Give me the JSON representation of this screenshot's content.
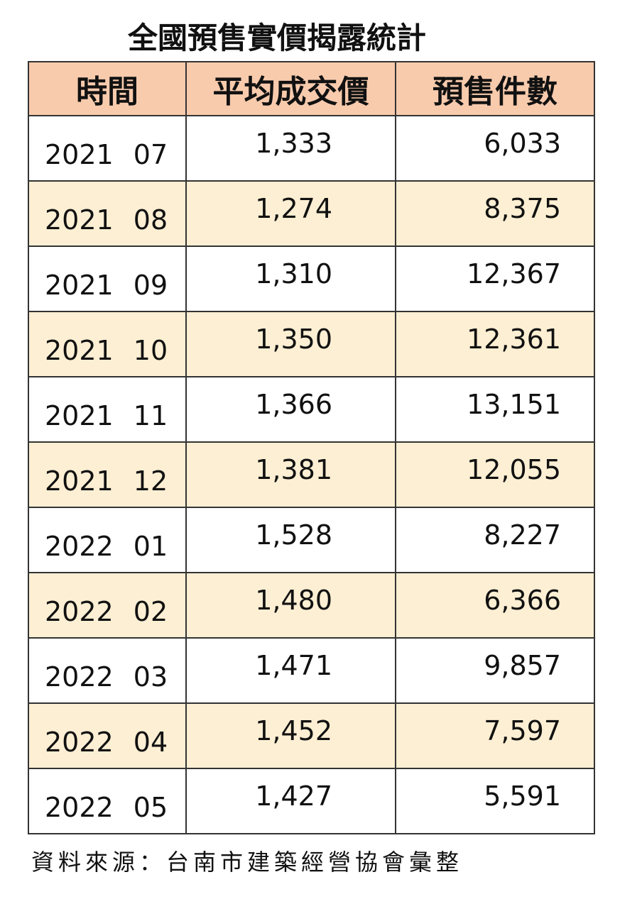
{
  "title": "全國預售實價揭露統計",
  "table": {
    "header": [
      "時間",
      "平均成交價",
      "預售件數"
    ],
    "rows": [
      [
        "2021 07",
        "1,333",
        "6,033"
      ],
      [
        "2021 08",
        "1,274",
        "8,375"
      ],
      [
        "2021 09",
        "1,310",
        "12,367"
      ],
      [
        "2021 10",
        "1,350",
        "12,361"
      ],
      [
        "2021 11",
        "1,366",
        "13,151"
      ],
      [
        "2021 12",
        "1,381",
        "12,055"
      ],
      [
        "2022 01",
        "1,528",
        "8,227"
      ],
      [
        "2022 02",
        "1,480",
        "6,366"
      ],
      [
        "2022 03",
        "1,471",
        "9,857"
      ],
      [
        "2022 04",
        "1,452",
        "7,597"
      ],
      [
        "2022 05",
        "1,427",
        "5,591"
      ]
    ]
  },
  "source": "資料來源：台南市建築經營協會彙整"
}
